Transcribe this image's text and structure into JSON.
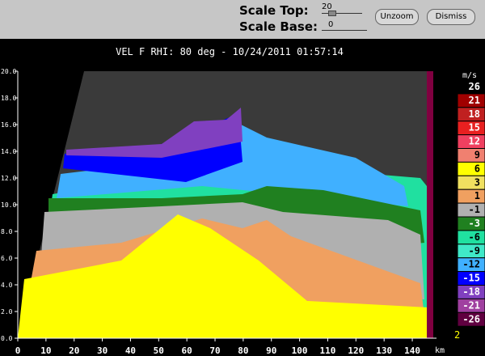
{
  "controls": {
    "scale_top_label": "Scale Top:",
    "scale_top_value": "20",
    "scale_base_label": "Scale Base:",
    "scale_base_value": "0",
    "buttons": [
      "Unzoom",
      "Dismiss"
    ]
  },
  "plot": {
    "title": "VEL F  RHI: 80 deg  -  10/24/2011 01:57:14",
    "y_ticks": [
      "0.0",
      "2.0",
      "4.0",
      "6.0",
      "8.0",
      "10.0",
      "12.0",
      "14.0",
      "16.0",
      "18.0",
      "20.0"
    ],
    "x_ticks": [
      "0",
      "10",
      "20",
      "30",
      "40",
      "50",
      "60",
      "70",
      "80",
      "90",
      "100",
      "110",
      "120",
      "130",
      "140"
    ],
    "x_unit": "km",
    "corner_label": "2",
    "colorbar": {
      "unit": "m/s",
      "entries": [
        {
          "label": "26",
          "color": "#000000"
        },
        {
          "label": "21",
          "color": "#a00000"
        },
        {
          "label": "18",
          "color": "#c02020"
        },
        {
          "label": "15",
          "color": "#e82020"
        },
        {
          "label": "12",
          "color": "#f04060"
        },
        {
          "label": "9",
          "color": "#f08070"
        },
        {
          "label": "6",
          "color": "#ffff00"
        },
        {
          "label": "3",
          "color": "#f0e060"
        },
        {
          "label": "1",
          "color": "#f0a060"
        },
        {
          "label": "-1",
          "color": "#b0b0b0"
        },
        {
          "label": "-3",
          "color": "#208020"
        },
        {
          "label": "-6",
          "color": "#20e0a0"
        },
        {
          "label": "-9",
          "color": "#40e8c8"
        },
        {
          "label": "-12",
          "color": "#40b0ff"
        },
        {
          "label": "-15",
          "color": "#0000ff"
        },
        {
          "label": "-18",
          "color": "#8040c0"
        },
        {
          "label": "-21",
          "color": "#a040a0"
        },
        {
          "label": "-26",
          "color": "#600040"
        }
      ]
    }
  }
}
